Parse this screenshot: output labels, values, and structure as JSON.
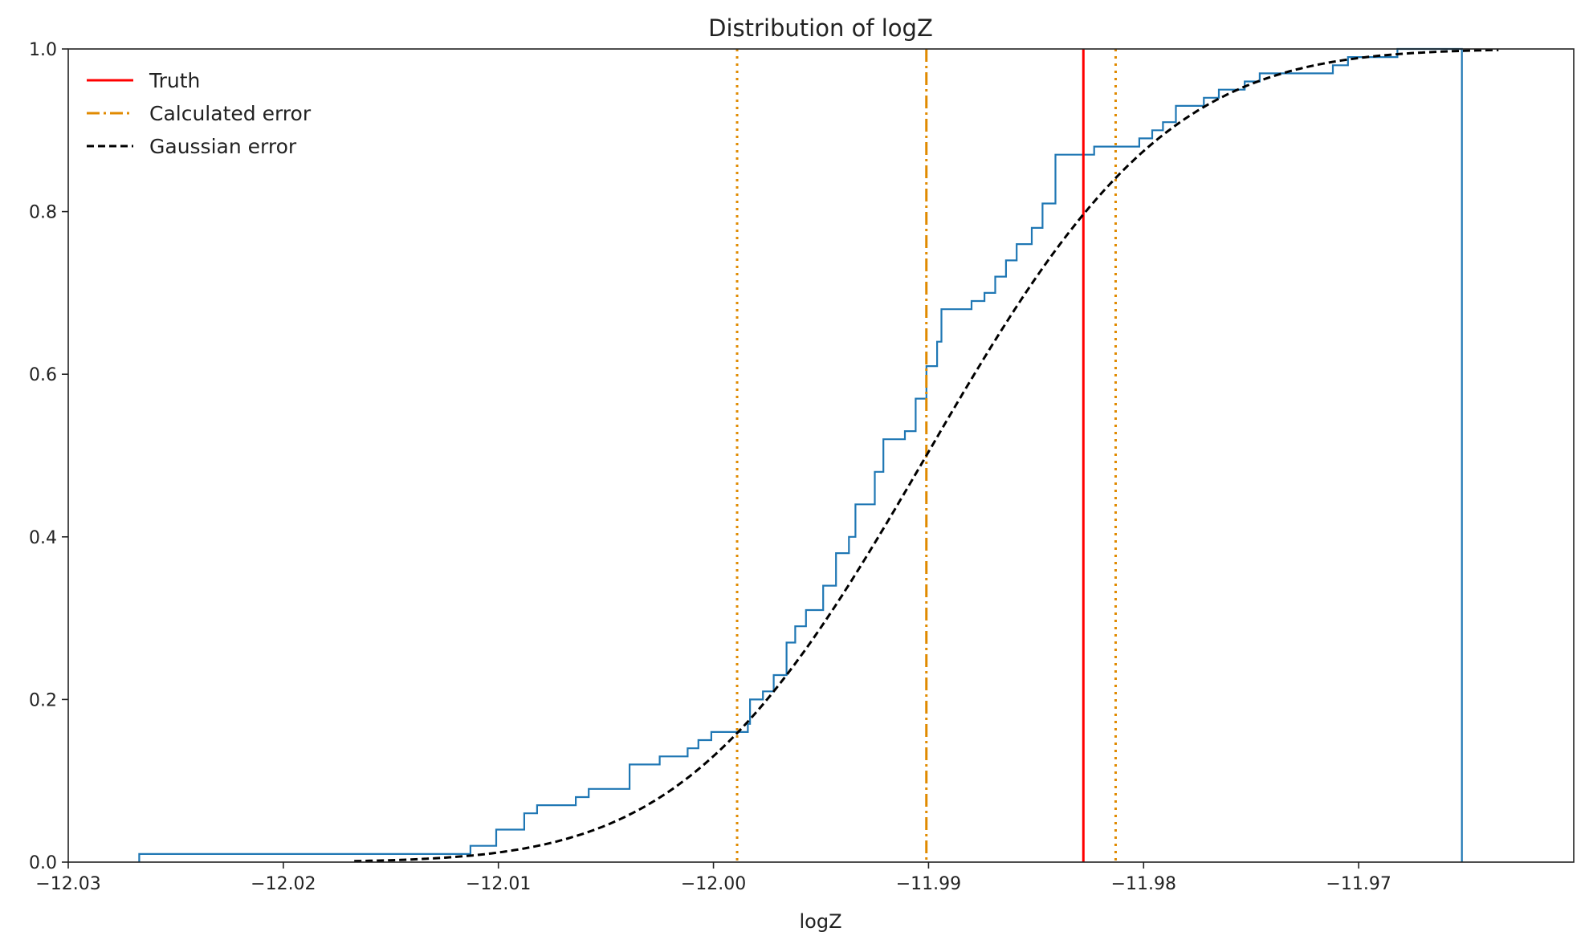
{
  "chart_data": {
    "type": "line",
    "title": "Distribution of logZ",
    "xlabel": "logZ",
    "ylabel": "",
    "xlim": [
      -12.03,
      -11.96
    ],
    "ylim": [
      0.0,
      1.0
    ],
    "xticks": [
      -12.03,
      -12.02,
      -12.01,
      -12.0,
      -11.99,
      -11.98,
      -11.97
    ],
    "xtick_labels": [
      "−12.03",
      "−12.02",
      "−12.01",
      "−12.00",
      "−11.99",
      "−11.98",
      "−11.97"
    ],
    "yticks": [
      0.0,
      0.2,
      0.4,
      0.6,
      0.8,
      1.0
    ],
    "ytick_labels": [
      "0.0",
      "0.2",
      "0.4",
      "0.6",
      "0.8",
      "1.0"
    ],
    "grid": false,
    "legend_position": "top-left",
    "legend": [
      {
        "label": "Truth",
        "color": "#ff0000",
        "style": "solid"
      },
      {
        "label": "Calculated error",
        "color": "#e08a00",
        "style": "dashdot"
      },
      {
        "label": "Gaussian error",
        "color": "#000000",
        "style": "dashed"
      }
    ],
    "ecdf": {
      "color": "#1f77b4",
      "steps": [
        [
          -12.0267,
          0.01
        ],
        [
          -12.0113,
          0.02
        ],
        [
          -12.0101,
          0.04
        ],
        [
          -12.0088,
          0.06
        ],
        [
          -12.0082,
          0.07
        ],
        [
          -12.0064,
          0.08
        ],
        [
          -12.0058,
          0.09
        ],
        [
          -12.0039,
          0.12
        ],
        [
          -12.0025,
          0.13
        ],
        [
          -12.0012,
          0.14
        ],
        [
          -12.0007,
          0.15
        ],
        [
          -12.0001,
          0.16
        ],
        [
          -11.9984,
          0.17
        ],
        [
          -11.9983,
          0.2
        ],
        [
          -11.9977,
          0.21
        ],
        [
          -11.9972,
          0.23
        ],
        [
          -11.9966,
          0.27
        ],
        [
          -11.9962,
          0.29
        ],
        [
          -11.9957,
          0.31
        ],
        [
          -11.9949,
          0.34
        ],
        [
          -11.9943,
          0.38
        ],
        [
          -11.9937,
          0.4
        ],
        [
          -11.9934,
          0.44
        ],
        [
          -11.9925,
          0.48
        ],
        [
          -11.9921,
          0.52
        ],
        [
          -11.9911,
          0.53
        ],
        [
          -11.9906,
          0.57
        ],
        [
          -11.9901,
          0.61
        ],
        [
          -11.9896,
          0.64
        ],
        [
          -11.9894,
          0.68
        ],
        [
          -11.988,
          0.69
        ],
        [
          -11.9874,
          0.7
        ],
        [
          -11.9869,
          0.72
        ],
        [
          -11.9864,
          0.74
        ],
        [
          -11.9859,
          0.76
        ],
        [
          -11.9852,
          0.78
        ],
        [
          -11.9847,
          0.81
        ],
        [
          -11.9841,
          0.87
        ],
        [
          -11.9823,
          0.88
        ],
        [
          -11.9802,
          0.89
        ],
        [
          -11.9796,
          0.9
        ],
        [
          -11.9791,
          0.91
        ],
        [
          -11.9785,
          0.93
        ],
        [
          -11.9772,
          0.94
        ],
        [
          -11.9765,
          0.95
        ],
        [
          -11.9753,
          0.96
        ],
        [
          -11.9746,
          0.97
        ],
        [
          -11.9712,
          0.98
        ],
        [
          -11.9705,
          0.99
        ],
        [
          -11.9682,
          1.0
        ]
      ],
      "x_end": -11.9652
    },
    "truth": {
      "x": -11.9828,
      "color": "#ff0000"
    },
    "calculated_error": {
      "mean": -11.9901,
      "lower": -11.9989,
      "upper": -11.9813,
      "color": "#e08a00"
    },
    "gaussian_error": {
      "mean": -11.9901,
      "sigma": 0.0088,
      "x_range": [
        -12.0167,
        -11.9635
      ],
      "color": "#000000"
    }
  }
}
